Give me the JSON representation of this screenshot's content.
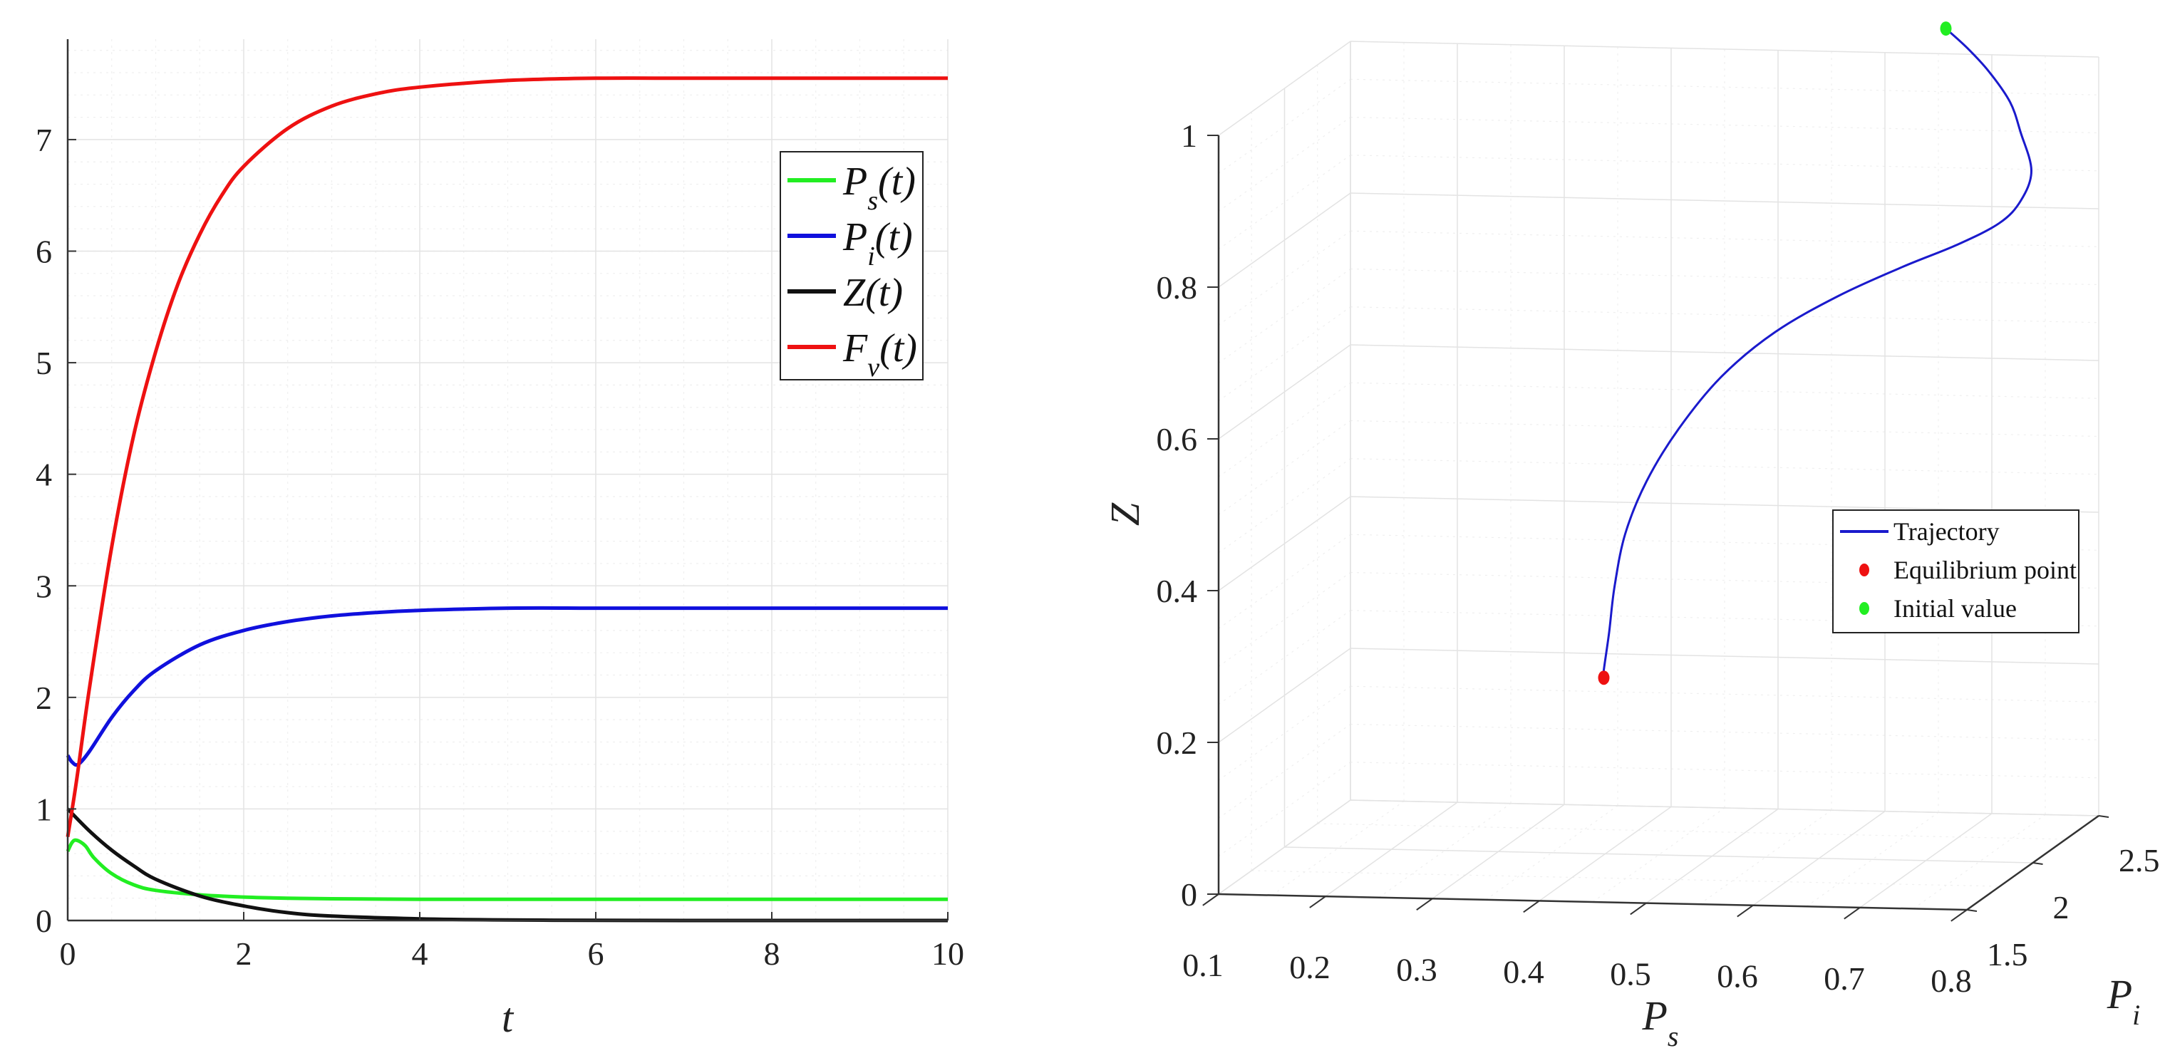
{
  "chart_data": [
    {
      "type": "line",
      "xlabel": "t",
      "ylabel": "",
      "xlim": [
        0,
        10
      ],
      "ylim": [
        0,
        7.9
      ],
      "xticks": [
        "0",
        "2",
        "4",
        "6",
        "8",
        "10"
      ],
      "yticks": [
        "0",
        "1",
        "2",
        "3",
        "4",
        "5",
        "6",
        "7"
      ],
      "grid": true,
      "legend_position": "top-right",
      "series": [
        {
          "name": "P_s(t)",
          "legend_base": "P",
          "legend_sub": "s",
          "legend_suffix": "(t)",
          "color": "#22ee22",
          "x": [
            0,
            0.05,
            0.1,
            0.2,
            0.3,
            0.5,
            0.75,
            1,
            1.5,
            2,
            2.5,
            3,
            4,
            5,
            6,
            7,
            8,
            9,
            10
          ],
          "y": [
            0.62,
            0.7,
            0.72,
            0.67,
            0.56,
            0.42,
            0.32,
            0.27,
            0.23,
            0.21,
            0.2,
            0.195,
            0.19,
            0.19,
            0.19,
            0.19,
            0.19,
            0.19,
            0.19
          ]
        },
        {
          "name": "P_i(t)",
          "legend_base": "P",
          "legend_sub": "i",
          "legend_suffix": "(t)",
          "color": "#1010dd",
          "x": [
            0,
            0.05,
            0.12,
            0.25,
            0.5,
            0.75,
            1,
            1.5,
            2,
            2.5,
            3,
            3.5,
            4,
            5,
            6,
            7,
            8,
            9,
            10
          ],
          "y": [
            1.48,
            1.42,
            1.4,
            1.52,
            1.82,
            2.06,
            2.24,
            2.47,
            2.6,
            2.68,
            2.73,
            2.76,
            2.78,
            2.8,
            2.8,
            2.8,
            2.8,
            2.8,
            2.8
          ]
        },
        {
          "name": "Z(t)",
          "legend_base": "Z",
          "legend_sub": "",
          "legend_suffix": "(t)",
          "color": "#111111",
          "x": [
            0,
            0.25,
            0.5,
            0.75,
            1,
            1.5,
            2,
            2.5,
            3,
            4,
            5,
            6,
            7,
            8,
            9,
            10
          ],
          "y": [
            1.0,
            0.8,
            0.63,
            0.49,
            0.37,
            0.22,
            0.13,
            0.07,
            0.04,
            0.015,
            0.005,
            0.002,
            0,
            0,
            0,
            0
          ]
        },
        {
          "name": "F_v(t)",
          "legend_base": "F",
          "legend_sub": "v",
          "legend_suffix": "(t)",
          "color": "#ee1111",
          "x": [
            0,
            0.1,
            0.25,
            0.5,
            0.75,
            1,
            1.25,
            1.5,
            1.75,
            2,
            2.5,
            3,
            3.5,
            4,
            5,
            6,
            7,
            8,
            9,
            10
          ],
          "y": [
            0.75,
            1.25,
            2.1,
            3.35,
            4.35,
            5.1,
            5.7,
            6.15,
            6.5,
            6.76,
            7.1,
            7.3,
            7.41,
            7.47,
            7.53,
            7.55,
            7.55,
            7.55,
            7.55,
            7.55
          ]
        }
      ]
    },
    {
      "type": "line",
      "subtype": "3d-trajectory",
      "xlabel": "P_s",
      "xlabel_base": "P",
      "xlabel_sub": "s",
      "ylabel": "P_i",
      "ylabel_base": "P",
      "ylabel_sub": "i",
      "zlabel": "Z",
      "xlim": [
        0.1,
        0.8
      ],
      "ylim": [
        1.5,
        2.5
      ],
      "zlim": [
        0,
        1
      ],
      "xticks": [
        "0.1",
        "0.2",
        "0.3",
        "0.4",
        "0.5",
        "0.6",
        "0.7",
        "0.8"
      ],
      "yticks": [
        "1.5",
        "2",
        "2.5"
      ],
      "zticks": [
        "0",
        "0.2",
        "0.4",
        "0.6",
        "0.8",
        "1"
      ],
      "grid": true,
      "legend_position": "right",
      "legend": [
        {
          "label": "Trajectory",
          "marker": "line",
          "color": "#1a1acc"
        },
        {
          "label": "Equilibrium point",
          "marker": "dot",
          "color": "#ee1111"
        },
        {
          "label": "Initial value",
          "marker": "dot",
          "color": "#22ee22"
        }
      ],
      "trajectory": {
        "ps": [
          0.62,
          0.64,
          0.66,
          0.68,
          0.69,
          0.7,
          0.69,
          0.67,
          0.63,
          0.58,
          0.52,
          0.46,
          0.41,
          0.37,
          0.34,
          0.32,
          0.31,
          0.305,
          0.3,
          0.3
        ],
        "pi": [
          2.8,
          2.8,
          2.8,
          2.8,
          2.8,
          2.8,
          2.8,
          2.8,
          2.8,
          2.8,
          2.8,
          2.8,
          2.8,
          2.8,
          2.8,
          2.8,
          2.8,
          2.8,
          2.8,
          2.8
        ],
        "z": [
          0.995,
          0.97,
          0.94,
          0.9,
          0.86,
          0.81,
          0.77,
          0.74,
          0.71,
          0.68,
          0.64,
          0.59,
          0.53,
          0.46,
          0.39,
          0.32,
          0.25,
          0.19,
          0.14,
          0.13
        ]
      },
      "equilibrium": {
        "ps": 0.3,
        "pi": 2.8,
        "z": 0.13
      },
      "initial": {
        "ps": 0.62,
        "pi": 2.8,
        "z": 0.995
      }
    }
  ]
}
